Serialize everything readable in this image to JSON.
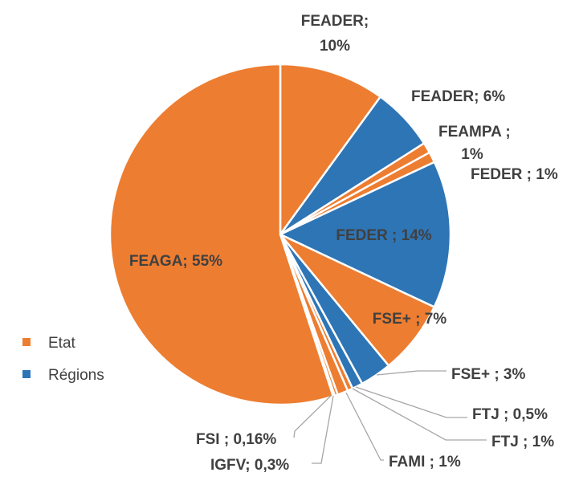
{
  "chart_data": {
    "type": "pie",
    "series_groups": [
      {
        "name": "Etat",
        "color": "#ED7D31"
      },
      {
        "name": "Régions",
        "color": "#2E75B6"
      }
    ],
    "slices": [
      {
        "label": "FEADER; 10%",
        "fund": "FEADER",
        "group": "Etat",
        "value": 10
      },
      {
        "label": "FEADER; 6%",
        "fund": "FEADER",
        "group": "Régions",
        "value": 6
      },
      {
        "label": "FEAMPA ;",
        "label2": "1%",
        "fund": "FEAMPA",
        "group": "Etat",
        "value": 1
      },
      {
        "label": "FEDER ; 1%",
        "fund": "FEDER",
        "group": "Etat",
        "value": 1
      },
      {
        "label": "FEDER ; 14%",
        "fund": "FEDER",
        "group": "Régions",
        "value": 14
      },
      {
        "label": "FSE+ ; 7%",
        "fund": "FSE+",
        "group": "Etat",
        "value": 7
      },
      {
        "label": "FSE+ ; 3%",
        "fund": "FSE+",
        "group": "Régions",
        "value": 3
      },
      {
        "label": "FTJ ; 1%",
        "fund": "FTJ",
        "group": "Régions",
        "value": 1
      },
      {
        "label": "FTJ ; 0,5%",
        "fund": "FTJ",
        "group": "Etat",
        "value": 0.5
      },
      {
        "label": "FAMI ; 1%",
        "fund": "FAMI",
        "group": "Etat",
        "value": 1
      },
      {
        "label": "IGFV; 0,3%",
        "fund": "IGFV",
        "group": "Etat",
        "value": 0.3
      },
      {
        "label": "FSI ; 0,16%",
        "fund": "FSI",
        "group": "Etat",
        "value": 0.16
      },
      {
        "label": "FEAGA; 55%",
        "fund": "FEAGA",
        "group": "Etat",
        "value": 55
      }
    ],
    "legend": [
      "Etat",
      "Régions"
    ],
    "legend_position": "left"
  }
}
